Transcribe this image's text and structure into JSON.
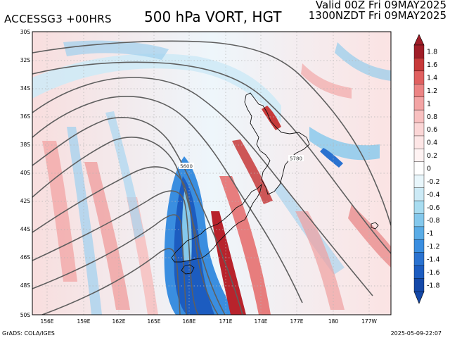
{
  "header": {
    "model_label": "ACCESSG3 +00HRS",
    "title": "500 hPa VORT, HGT",
    "valid_utc": "Valid 00Z Fri 09MAY2025",
    "valid_local": "1300NZDT Fri 09MAY2025"
  },
  "footer": {
    "credit": "GrADS: COLA/IGES",
    "timestamp": "2025-05-09-22:07"
  },
  "map": {
    "lat_labels": [
      "30S",
      "32S",
      "34S",
      "36S",
      "38S",
      "40S",
      "42S",
      "44S",
      "46S",
      "48S",
      "50S"
    ],
    "lon_labels": [
      "156E",
      "159E",
      "162E",
      "165E",
      "168E",
      "171E",
      "174E",
      "177E",
      "180",
      "177W"
    ],
    "contour_labels": [
      "5600",
      "5780"
    ],
    "field": "500 hPa vorticity shaded, geopotential height contours"
  },
  "colorbar": {
    "labels": [
      "1.8",
      "1.6",
      "1.4",
      "1.2",
      "1",
      "0.8",
      "0.6",
      "0.4",
      "0.2",
      "0",
      "-0.2",
      "-0.4",
      "-0.6",
      "-0.8",
      "-1",
      "-1.2",
      "-1.4",
      "-1.6",
      "-1.8"
    ],
    "colors": [
      "#a01e28",
      "#c73a3a",
      "#e06060",
      "#ec8484",
      "#f3a4a4",
      "#f8c0c0",
      "#fbd6d6",
      "#fde6e6",
      "#fff3f3",
      "#ffffff",
      "#e8f6fb",
      "#cceaf6",
      "#a8dcf0",
      "#84c8ec",
      "#5aace6",
      "#3a8ee0",
      "#2a72d0",
      "#1c5cc0",
      "#1448a8"
    ]
  }
}
